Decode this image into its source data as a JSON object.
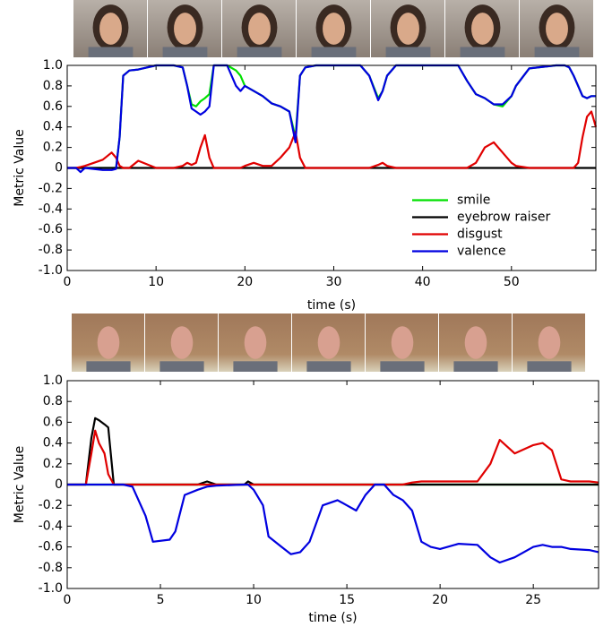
{
  "chart_data": [
    {
      "type": "line",
      "x": [
        0,
        1,
        1.5,
        2,
        3,
        4,
        5,
        5.5,
        5.9,
        6.3,
        7,
        8,
        10,
        12,
        13,
        13.5,
        14,
        14.5,
        15,
        15.5,
        16,
        16.5,
        17,
        18,
        19,
        19.5,
        20,
        21,
        22,
        23,
        24,
        25,
        25.7,
        26.2,
        26.8,
        28,
        30,
        33,
        34,
        35,
        35.5,
        36,
        37,
        40,
        44,
        45,
        46,
        47,
        48,
        49,
        50,
        50.5,
        52,
        55,
        56,
        56.5,
        57,
        57.5,
        58,
        58.5,
        59,
        59.5
      ],
      "series": [
        {
          "name": "smile",
          "color": "#00e000",
          "values": [
            0,
            0,
            0,
            0,
            0,
            0,
            0,
            0,
            0.3,
            0.9,
            0.95,
            0.96,
            1.0,
            1.0,
            0.98,
            0.8,
            0.62,
            0.6,
            0.65,
            0.68,
            0.72,
            1.0,
            1.0,
            1.0,
            0.95,
            0.9,
            0.8,
            0.75,
            0.7,
            0.63,
            0.6,
            0.55,
            0.3,
            0.9,
            0.98,
            1.0,
            1.0,
            1.0,
            0.9,
            0.68,
            0.75,
            0.9,
            1.0,
            1.0,
            1.0,
            0.85,
            0.72,
            0.68,
            0.62,
            0.6,
            0.7,
            0.8,
            0.97,
            1.0,
            1.0,
            0.98,
            0.9,
            0.8,
            0.7,
            0.68,
            0.7,
            0.7
          ]
        },
        {
          "name": "eyebrow raiser",
          "color": "#000000",
          "values": [
            0,
            0,
            0,
            0,
            0,
            0,
            0,
            0,
            0,
            0,
            0,
            0,
            0,
            0,
            0,
            0,
            0,
            0,
            0,
            0,
            0,
            0,
            0,
            0,
            0,
            0,
            0,
            0,
            0,
            0,
            0,
            0,
            0,
            0,
            0,
            0,
            0,
            0,
            0,
            0,
            0,
            0,
            0,
            0,
            0,
            0,
            0,
            0,
            0,
            0,
            0,
            0,
            0,
            0,
            0,
            0,
            0,
            0,
            0,
            0,
            0,
            0
          ]
        },
        {
          "name": "disgust",
          "color": "#e00000",
          "values": [
            0,
            0,
            0.01,
            0.02,
            0.05,
            0.08,
            0.15,
            0.1,
            0.02,
            0,
            0,
            0.07,
            0,
            0,
            0.02,
            0.05,
            0.03,
            0.05,
            0.2,
            0.32,
            0.1,
            0,
            0,
            0,
            0,
            0,
            0.02,
            0.05,
            0.02,
            0.02,
            0.1,
            0.2,
            0.35,
            0.1,
            0,
            0,
            0,
            0,
            0,
            0.03,
            0.05,
            0.02,
            0,
            0,
            0,
            0,
            0.05,
            0.2,
            0.25,
            0.15,
            0.05,
            0.02,
            0,
            0,
            0,
            0,
            0,
            0.05,
            0.3,
            0.5,
            0.55,
            0.4
          ]
        },
        {
          "name": "valence",
          "color": "#0000e0",
          "values": [
            0,
            0,
            -0.04,
            0,
            -0.01,
            -0.02,
            -0.02,
            -0.01,
            0.3,
            0.9,
            0.95,
            0.96,
            1.0,
            1.0,
            0.98,
            0.8,
            0.58,
            0.55,
            0.52,
            0.55,
            0.6,
            1.0,
            1.0,
            1.0,
            0.8,
            0.75,
            0.8,
            0.75,
            0.7,
            0.63,
            0.6,
            0.55,
            0.25,
            0.9,
            0.98,
            1.0,
            1.0,
            1.0,
            0.9,
            0.66,
            0.75,
            0.9,
            1.0,
            1.0,
            1.0,
            0.85,
            0.72,
            0.68,
            0.62,
            0.62,
            0.7,
            0.8,
            0.97,
            1.0,
            1.0,
            0.98,
            0.9,
            0.8,
            0.7,
            0.68,
            0.7,
            0.7
          ]
        }
      ],
      "xlabel": "time (s)",
      "ylabel": "Metric Value",
      "xlim": [
        0,
        59.5
      ],
      "ylim": [
        -1.0,
        1.0
      ],
      "xticks": [
        0,
        10,
        20,
        30,
        40,
        50
      ],
      "yticks": [
        {
          "value": 1.0,
          "label": "1.0"
        },
        0.8,
        0.6,
        0.4,
        0.2,
        0,
        -0.2,
        -0.4,
        -0.6,
        -0.8,
        {
          "value": -1.0,
          "label": "-1.0"
        }
      ],
      "legend": "lower right"
    },
    {
      "type": "line",
      "x": [
        0,
        1,
        1.3,
        1.5,
        1.7,
        2,
        2.2,
        2.5,
        3,
        3.5,
        4.2,
        4.6,
        5.5,
        5.8,
        6.3,
        7,
        7.5,
        8,
        9.5,
        9.7,
        10,
        10.5,
        10.8,
        11.5,
        12,
        12.5,
        13,
        13.7,
        14.5,
        15,
        15.5,
        16,
        16.5,
        17,
        17.5,
        18,
        18.5,
        19,
        19.5,
        20,
        21,
        22,
        22.7,
        23.2,
        24,
        25,
        25.5,
        26,
        26.5,
        27,
        28,
        28.5
      ],
      "series": [
        {
          "color": "#00e000",
          "values": [
            0,
            0,
            0,
            0,
            0,
            0,
            0,
            0,
            0,
            0,
            0,
            0,
            0,
            0,
            0,
            0,
            0,
            0,
            0,
            0,
            0,
            0,
            0,
            0,
            0,
            0,
            0,
            0,
            0,
            0,
            0,
            0,
            0,
            0,
            0,
            0,
            0,
            0,
            0,
            0,
            0,
            0,
            0,
            0,
            0,
            0,
            0,
            0,
            0,
            0,
            0,
            0
          ]
        },
        {
          "color": "#000000",
          "values": [
            0,
            0,
            0.45,
            0.64,
            0.62,
            0.58,
            0.55,
            0,
            0,
            0,
            0,
            0,
            0,
            0,
            0,
            0,
            0.03,
            0,
            0,
            0.03,
            0,
            0,
            0,
            0,
            0,
            0,
            0,
            0,
            0,
            0,
            0,
            0,
            0,
            0,
            0,
            0,
            0,
            0,
            0,
            0,
            0,
            0,
            0,
            0,
            0,
            0,
            0,
            0,
            0,
            0,
            0,
            0
          ]
        },
        {
          "color": "#e00000",
          "values": [
            0,
            0,
            0.3,
            0.52,
            0.4,
            0.3,
            0.1,
            0,
            0,
            0,
            0,
            0,
            0,
            0,
            0,
            0,
            0,
            0,
            0,
            0,
            0,
            0,
            0,
            0,
            0,
            0,
            0,
            0,
            0,
            0,
            0,
            0,
            0,
            0,
            0,
            0,
            0.02,
            0.03,
            0.03,
            0.03,
            0.03,
            0.03,
            0.2,
            0.43,
            0.3,
            0.38,
            0.4,
            0.33,
            0.05,
            0.03,
            0.03,
            0.02
          ]
        },
        {
          "color": "#0000e0",
          "values": [
            0,
            0,
            0,
            0,
            0,
            0,
            0,
            0,
            0,
            -0.02,
            -0.3,
            -0.55,
            -0.53,
            -0.45,
            -0.1,
            -0.05,
            -0.02,
            -0.01,
            0,
            0,
            -0.05,
            -0.2,
            -0.5,
            -0.6,
            -0.67,
            -0.65,
            -0.55,
            -0.2,
            -0.15,
            -0.2,
            -0.25,
            -0.1,
            0,
            0,
            -0.1,
            -0.15,
            -0.25,
            -0.55,
            -0.6,
            -0.62,
            -0.57,
            -0.58,
            -0.7,
            -0.75,
            -0.7,
            -0.6,
            -0.58,
            -0.6,
            -0.6,
            -0.62,
            -0.63,
            -0.65
          ]
        }
      ],
      "xlabel": "time (s)",
      "ylabel": "Metric Value",
      "xlim": [
        0,
        28.5
      ],
      "ylim": [
        -1.0,
        1.0
      ],
      "xticks": [
        0,
        5,
        10,
        15,
        20,
        25
      ],
      "yticks": [
        {
          "value": 1.0,
          "label": "1.0"
        },
        0.8,
        0.6,
        0.4,
        0.2,
        0,
        -0.2,
        -0.4,
        -0.6,
        -0.8,
        {
          "value": -1.0,
          "label": "-1.0"
        }
      ]
    }
  ]
}
